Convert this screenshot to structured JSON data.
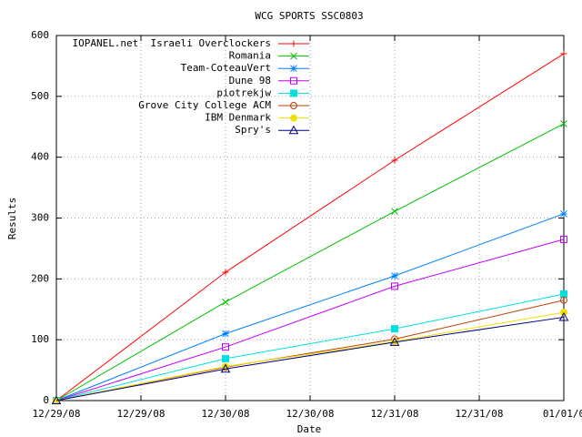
{
  "chart_data": {
    "type": "line",
    "title": "WCG SPORTS SSC0803",
    "x_label": "Date",
    "y_label": "Results",
    "x": [
      0,
      1,
      2,
      3
    ],
    "xlim": [
      0,
      3
    ],
    "xticks": [
      {
        "value": 0,
        "label": "12/29/08"
      },
      {
        "value": 0.5,
        "label": "12/29/08"
      },
      {
        "value": 1,
        "label": "12/30/08"
      },
      {
        "value": 1.5,
        "label": "12/30/08"
      },
      {
        "value": 2,
        "label": "12/31/08"
      },
      {
        "value": 2.5,
        "label": "12/31/08"
      },
      {
        "value": 3,
        "label": "01/01/0"
      }
    ],
    "ylim": [
      0,
      600
    ],
    "yticks": [
      0,
      100,
      200,
      300,
      400,
      500,
      600
    ],
    "grid": true,
    "legend": "top-left",
    "series": [
      {
        "name": "IOPANEL.net  Israeli Overclockers",
        "color": "#ff0000",
        "marker": "plus",
        "values": [
          0,
          211,
          395,
          570
        ]
      },
      {
        "name": "Romania",
        "color": "#00c000",
        "marker": "cross",
        "values": [
          0,
          162,
          311,
          455
        ]
      },
      {
        "name": "Team-CoteauVert",
        "color": "#0080ff",
        "marker": "star",
        "values": [
          0,
          110,
          205,
          307
        ]
      },
      {
        "name": "Dune 98",
        "color": "#c000ff",
        "marker": "box",
        "values": [
          0,
          88,
          188,
          265
        ]
      },
      {
        "name": "piotrekjw",
        "color": "#00e0e0",
        "marker": "filled-box",
        "values": [
          0,
          69,
          118,
          175
        ]
      },
      {
        "name": "Grove City College ACM",
        "color": "#c04000",
        "marker": "circle",
        "values": [
          0,
          55,
          101,
          165
        ]
      },
      {
        "name": "IBM Denmark",
        "color": "#f0e000",
        "marker": "filled-circle",
        "values": [
          0,
          56,
          97,
          145
        ]
      },
      {
        "name": "Spry's",
        "color": "#000080",
        "marker": "triangle",
        "values": [
          0,
          52,
          96,
          137
        ]
      }
    ]
  }
}
